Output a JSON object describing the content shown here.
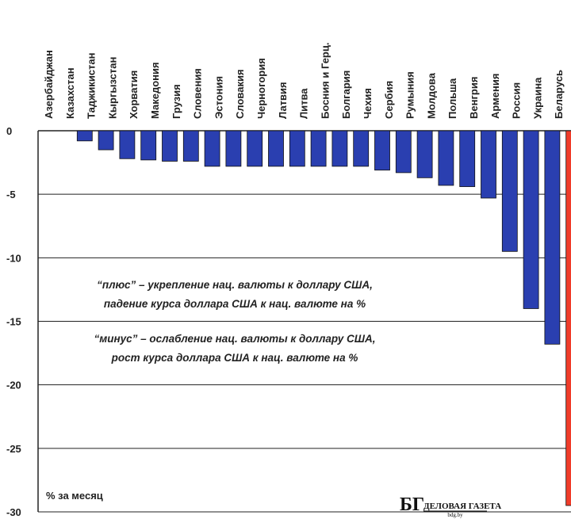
{
  "chart_data": {
    "type": "bar",
    "categories": [
      "Азербайджан",
      "Казахстан",
      "Таджикистан",
      "Кыргызстан",
      "Хорватия",
      "Македония",
      "Грузия",
      "Словения",
      "Эстония",
      "Словакия",
      "Черногория",
      "Латвия",
      "Литва",
      "Босния и Герц.",
      "Болгария",
      "Чехия",
      "Сербия",
      "Румыния",
      "Молдова",
      "Польша",
      "Венгрия",
      "Армения",
      "Россия",
      "Украина",
      "Беларусь"
    ],
    "values": [
      0,
      -0.8,
      -1.5,
      -2.2,
      -2.3,
      -2.4,
      -2.4,
      -2.8,
      -2.8,
      -2.8,
      -2.8,
      -2.8,
      -2.8,
      -2.8,
      -2.8,
      -3.1,
      -3.3,
      -3.7,
      -4.3,
      -4.4,
      -5.3,
      -9.5,
      -14.0,
      -16.8,
      -29.5
    ],
    "ylim": [
      -30,
      0
    ],
    "yticks": [
      "0",
      "-5",
      "-10",
      "-15",
      "-20",
      "-25",
      "-30"
    ],
    "ylabel": "% за месяц",
    "grid": true,
    "colors": {
      "bar": "#2a3fb0",
      "highlight": "#f03c2a",
      "highlight_category": "Беларусь"
    },
    "annotations": [
      "“плюс” – укрепление нац. валюты к доллару США,",
      "падение курса доллара США к нац. валюте на %",
      "“минус” – ослабление нац. валюты к доллару США,",
      "рост курса доллара США к нац. валюте на %"
    ]
  },
  "logo": {
    "mark": "БГ",
    "name": "ДЕЛОВАЯ ГАЗЕТА",
    "site": "bdg.by"
  }
}
